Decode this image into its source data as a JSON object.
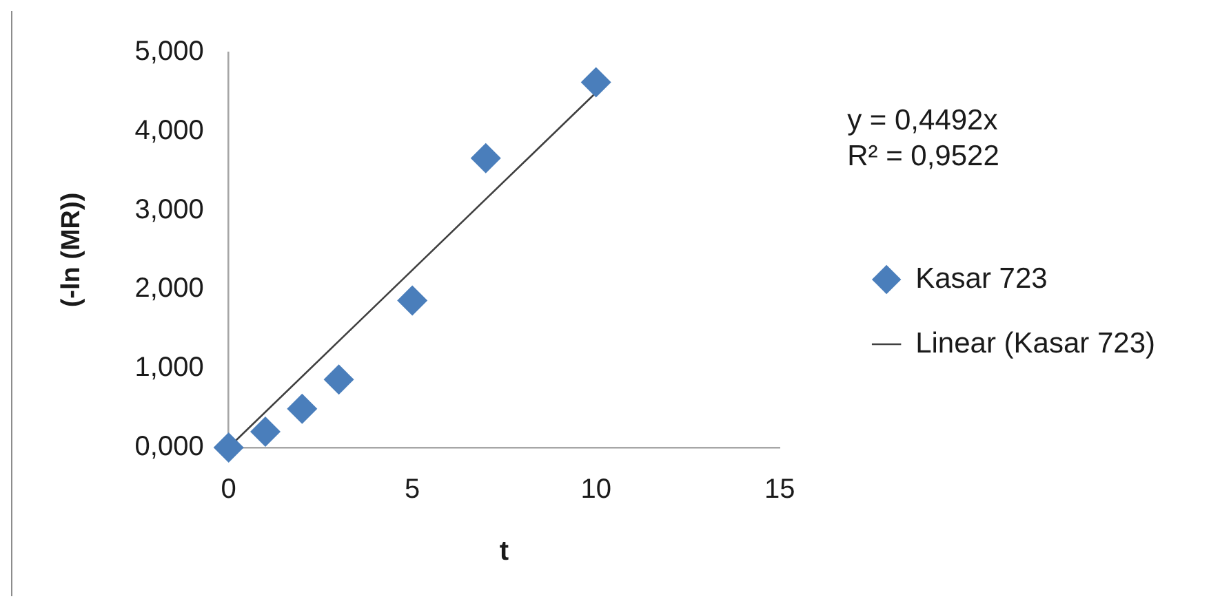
{
  "chart_data": {
    "type": "scatter",
    "xlabel": "t",
    "ylabel": "(-ln (MR))",
    "annotations": [
      "y = 0,4492x",
      "R² = 0,9522"
    ],
    "xlim": [
      0,
      15
    ],
    "xticks": [
      0,
      5,
      10,
      15
    ],
    "ylim": [
      0,
      5
    ],
    "yticks": [
      {
        "value": 0,
        "label": "0,000"
      },
      {
        "value": 1,
        "label": "1,000"
      },
      {
        "value": 2,
        "label": "2,000"
      },
      {
        "value": 3,
        "label": "3,000"
      },
      {
        "value": 4,
        "label": "4,000"
      },
      {
        "value": 5,
        "label": "5,000"
      }
    ],
    "grid": false,
    "legend": "right",
    "series": [
      {
        "name": "Kasar 723",
        "type": "scatter",
        "color": "#4a7ebb",
        "marker": "diamond",
        "x": [
          0,
          1,
          2,
          3,
          5,
          7,
          10
        ],
        "values": [
          0,
          0.2,
          0.49,
          0.86,
          1.86,
          3.66,
          4.62
        ]
      },
      {
        "name": "Linear (Kasar 723)",
        "type": "line",
        "color": "#404040",
        "marker": "none",
        "line_style": "solid",
        "x": [
          0,
          10
        ],
        "values": [
          0,
          4.49
        ]
      }
    ]
  }
}
